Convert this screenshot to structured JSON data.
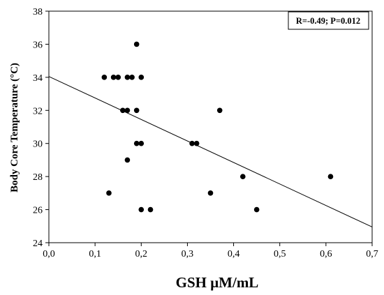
{
  "chart_data": {
    "type": "scatter",
    "title": "",
    "xlabel": "GSH μM/mL",
    "ylabel": "Body Core Temperature (°C)",
    "xlim": [
      0.0,
      0.7
    ],
    "ylim": [
      24,
      38
    ],
    "x_ticks": [
      0.0,
      0.1,
      0.2,
      0.3,
      0.4,
      0.5,
      0.6,
      0.7
    ],
    "x_tick_labels": [
      "0,0",
      "0,1",
      "0,2",
      "0,3",
      "0,4",
      "0,5",
      "0,6",
      "0,7"
    ],
    "y_ticks": [
      24,
      26,
      28,
      30,
      32,
      34,
      36,
      38
    ],
    "y_tick_labels": [
      "24",
      "26",
      "28",
      "30",
      "32",
      "34",
      "36",
      "38"
    ],
    "grid": false,
    "annotation": "R=-0.49; P=0.012",
    "annotation_position": "top-right",
    "points": [
      {
        "x": 0.12,
        "y": 34
      },
      {
        "x": 0.14,
        "y": 34
      },
      {
        "x": 0.15,
        "y": 34
      },
      {
        "x": 0.17,
        "y": 34
      },
      {
        "x": 0.18,
        "y": 34
      },
      {
        "x": 0.2,
        "y": 34
      },
      {
        "x": 0.19,
        "y": 36
      },
      {
        "x": 0.16,
        "y": 32
      },
      {
        "x": 0.17,
        "y": 32
      },
      {
        "x": 0.19,
        "y": 32
      },
      {
        "x": 0.19,
        "y": 30
      },
      {
        "x": 0.2,
        "y": 30
      },
      {
        "x": 0.31,
        "y": 30
      },
      {
        "x": 0.32,
        "y": 30
      },
      {
        "x": 0.37,
        "y": 32
      },
      {
        "x": 0.17,
        "y": 29
      },
      {
        "x": 0.13,
        "y": 27
      },
      {
        "x": 0.35,
        "y": 27
      },
      {
        "x": 0.42,
        "y": 28
      },
      {
        "x": 0.61,
        "y": 28
      },
      {
        "x": 0.2,
        "y": 26
      },
      {
        "x": 0.22,
        "y": 26
      },
      {
        "x": 0.45,
        "y": 26
      }
    ],
    "regression_line": {
      "x": [
        0.0,
        0.7
      ],
      "y": [
        34.05,
        24.95
      ]
    }
  }
}
